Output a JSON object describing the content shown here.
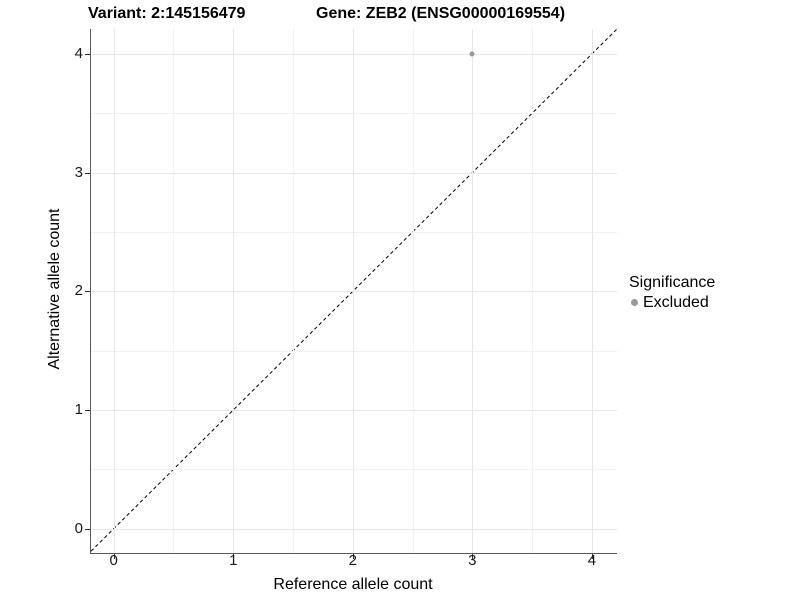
{
  "chart_data": {
    "type": "scatter",
    "titles": {
      "variant": "Variant: 2:145156479",
      "gene": "Gene: ZEB2 (ENSG00000169554)"
    },
    "xlabel": "Reference allele count",
    "ylabel": "Alternative allele count",
    "xlim": [
      -0.19,
      4.21
    ],
    "ylim": [
      -0.205,
      4.21
    ],
    "x_ticks": [
      0,
      1,
      2,
      3,
      4
    ],
    "y_ticks": [
      0,
      1,
      2,
      3,
      4
    ],
    "x_minor_ticks": [
      0.5,
      1.5,
      2.5,
      3.5
    ],
    "y_minor_ticks": [
      0.5,
      1.5,
      2.5,
      3.5
    ],
    "grid": {
      "major": true,
      "minor": true
    },
    "reference_line": {
      "type": "identity",
      "style": "dashed",
      "color": "#000000"
    },
    "series": [
      {
        "name": "Excluded",
        "color": "#999999",
        "points": [
          {
            "x": 3,
            "y": 4
          }
        ]
      }
    ],
    "legend": {
      "title": "Significance",
      "position": "right",
      "items": [
        {
          "label": "Excluded",
          "color": "#999999"
        }
      ]
    }
  }
}
